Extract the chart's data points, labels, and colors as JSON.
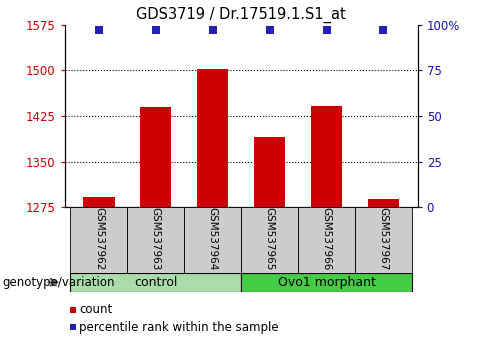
{
  "title": "GDS3719 / Dr.17519.1.S1_at",
  "samples": [
    "GSM537962",
    "GSM537963",
    "GSM537964",
    "GSM537965",
    "GSM537966",
    "GSM537967"
  ],
  "counts": [
    1291,
    1440,
    1503,
    1390,
    1442,
    1288
  ],
  "percentiles": [
    97,
    97,
    97,
    97,
    97,
    97
  ],
  "ylim_left": [
    1275,
    1575
  ],
  "ylim_right": [
    0,
    100
  ],
  "yticks_left": [
    1275,
    1350,
    1425,
    1500,
    1575
  ],
  "yticks_right": [
    0,
    25,
    50,
    75,
    100
  ],
  "ytick_labels_right": [
    "0",
    "25",
    "50",
    "75",
    "100%"
  ],
  "bar_color": "#cc0000",
  "dot_color": "#2222bb",
  "groups": [
    {
      "label": "control",
      "indices": [
        0,
        1,
        2
      ],
      "color": "#aaddaa"
    },
    {
      "label": "Ovo1 morphant",
      "indices": [
        3,
        4,
        5
      ],
      "color": "#44cc44"
    }
  ],
  "group_label_prefix": "genotype/variation",
  "bg_color": "#ffffff",
  "bar_width": 0.55,
  "sample_box_color": "#cccccc",
  "grid_color": "#000000"
}
